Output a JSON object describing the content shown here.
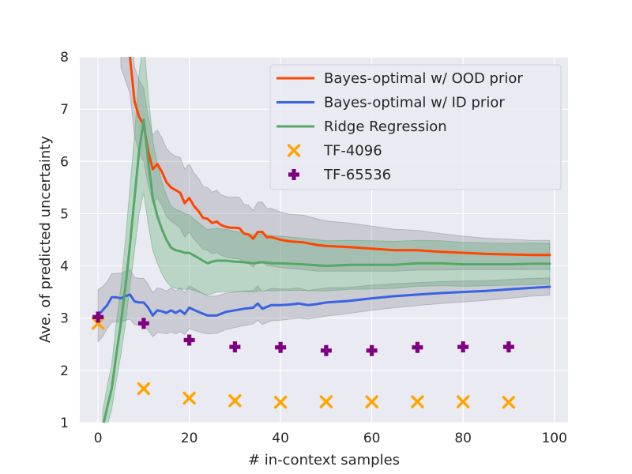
{
  "chart_data": {
    "type": "line",
    "xlabel": "# in-context samples",
    "ylabel": "Ave. of predicted uncertainty",
    "xlim": [
      -4,
      103
    ],
    "ylim": [
      1,
      8
    ],
    "xticks": [
      0,
      20,
      40,
      60,
      80,
      100
    ],
    "yticks": [
      1,
      2,
      3,
      4,
      5,
      6,
      7,
      8
    ],
    "grid": true,
    "legend_position": "top-right",
    "series": [
      {
        "name": "Bayes-optimal w/ OOD prior",
        "kind": "line",
        "color": "#ff4500",
        "band_color": "#8a8a96",
        "x": [
          5,
          7,
          8,
          9,
          10,
          11,
          12,
          13,
          14,
          15,
          16,
          17,
          18,
          19,
          20,
          21,
          22,
          23,
          24,
          25,
          26,
          27,
          28,
          29,
          30,
          31,
          32,
          33,
          34,
          35,
          36,
          37,
          38,
          40,
          42,
          45,
          48,
          50,
          55,
          60,
          65,
          70,
          75,
          80,
          85,
          90,
          95,
          99
        ],
        "y": [
          8.3,
          8.0,
          7.15,
          6.85,
          6.7,
          6.2,
          5.85,
          5.95,
          5.8,
          5.6,
          5.5,
          5.45,
          5.4,
          5.2,
          5.3,
          5.15,
          5.05,
          4.92,
          4.9,
          4.82,
          4.85,
          4.78,
          4.75,
          4.73,
          4.73,
          4.72,
          4.62,
          4.6,
          4.52,
          4.65,
          4.65,
          4.55,
          4.55,
          4.5,
          4.47,
          4.45,
          4.4,
          4.38,
          4.36,
          4.33,
          4.3,
          4.3,
          4.27,
          4.25,
          4.23,
          4.22,
          4.21,
          4.21
        ],
        "lower": [
          7.8,
          7.3,
          6.5,
          6.15,
          6.0,
          5.55,
          5.2,
          5.3,
          5.15,
          4.95,
          4.85,
          4.8,
          4.72,
          4.55,
          4.65,
          4.52,
          4.42,
          4.32,
          4.3,
          4.23,
          4.25,
          4.2,
          4.17,
          4.15,
          4.14,
          4.13,
          4.06,
          4.04,
          3.98,
          4.08,
          4.08,
          4.0,
          4.0,
          3.97,
          3.95,
          3.93,
          3.9,
          3.9,
          3.9,
          3.9,
          3.9,
          3.92,
          3.92,
          3.93,
          3.93,
          3.93,
          3.93,
          3.93
        ],
        "upper": [
          8.8,
          8.7,
          7.8,
          7.55,
          7.4,
          6.85,
          6.5,
          6.6,
          6.45,
          6.25,
          6.15,
          6.1,
          6.08,
          5.85,
          5.95,
          5.78,
          5.68,
          5.52,
          5.5,
          5.41,
          5.45,
          5.36,
          5.33,
          5.31,
          5.32,
          5.31,
          5.18,
          5.16,
          5.06,
          5.22,
          5.22,
          5.1,
          5.1,
          5.03,
          4.99,
          4.97,
          4.9,
          4.86,
          4.82,
          4.76,
          4.7,
          4.68,
          4.62,
          4.57,
          4.53,
          4.51,
          4.49,
          4.49
        ]
      },
      {
        "name": "Bayes-optimal w/ ID prior",
        "kind": "line",
        "color": "#3a63e0",
        "band_color": "#8a8a96",
        "x": [
          0,
          1,
          2,
          3,
          4,
          5,
          6,
          7,
          8,
          9,
          10,
          11,
          12,
          13,
          14,
          15,
          16,
          17,
          18,
          19,
          20,
          22,
          24,
          26,
          28,
          30,
          32,
          34,
          35,
          36,
          38,
          40,
          42,
          44,
          46,
          48,
          50,
          55,
          60,
          65,
          70,
          75,
          80,
          85,
          90,
          95,
          99
        ],
        "y": [
          3.05,
          3.15,
          3.25,
          3.4,
          3.4,
          3.38,
          3.42,
          3.45,
          3.32,
          3.3,
          3.3,
          3.2,
          3.05,
          3.15,
          3.13,
          3.1,
          3.15,
          3.1,
          3.15,
          3.08,
          3.2,
          3.12,
          3.05,
          3.05,
          3.12,
          3.15,
          3.18,
          3.2,
          3.28,
          3.18,
          3.25,
          3.25,
          3.26,
          3.28,
          3.25,
          3.27,
          3.3,
          3.33,
          3.38,
          3.42,
          3.45,
          3.48,
          3.5,
          3.52,
          3.55,
          3.58,
          3.6
        ],
        "lower": [
          2.55,
          2.65,
          2.8,
          2.92,
          2.93,
          2.92,
          2.96,
          2.98,
          2.88,
          2.86,
          2.86,
          2.77,
          2.64,
          2.73,
          2.72,
          2.7,
          2.74,
          2.7,
          2.74,
          2.69,
          2.8,
          2.74,
          2.7,
          2.71,
          2.78,
          2.82,
          2.86,
          2.89,
          2.96,
          2.88,
          2.95,
          2.96,
          2.98,
          3.0,
          2.98,
          3.01,
          3.04,
          3.09,
          3.15,
          3.2,
          3.24,
          3.28,
          3.31,
          3.34,
          3.38,
          3.42,
          3.44
        ],
        "upper": [
          3.55,
          3.6,
          3.7,
          3.85,
          3.86,
          3.86,
          3.9,
          3.93,
          3.78,
          3.76,
          3.76,
          3.65,
          3.48,
          3.58,
          3.56,
          3.52,
          3.58,
          3.52,
          3.58,
          3.49,
          3.62,
          3.52,
          3.42,
          3.42,
          3.48,
          3.5,
          3.52,
          3.53,
          3.62,
          3.5,
          3.57,
          3.56,
          3.56,
          3.58,
          3.53,
          3.55,
          3.58,
          3.59,
          3.63,
          3.66,
          3.68,
          3.7,
          3.71,
          3.72,
          3.74,
          3.76,
          3.77
        ]
      },
      {
        "name": "Ridge Regression",
        "kind": "line",
        "color": "#55a868",
        "band_color": "#55a868",
        "x": [
          1,
          2,
          3,
          4,
          5,
          6,
          7,
          8,
          9,
          10,
          11,
          12,
          13,
          14,
          15,
          16,
          17,
          18,
          19,
          20,
          21,
          22,
          23,
          24,
          25,
          26,
          28,
          30,
          32,
          34,
          36,
          38,
          40,
          45,
          50,
          55,
          60,
          65,
          70,
          75,
          80,
          85,
          90,
          95,
          99
        ],
        "y": [
          0.9,
          1.3,
          1.65,
          2.3,
          2.9,
          3.6,
          4.4,
          5.3,
          6.2,
          6.8,
          6.0,
          5.3,
          4.95,
          4.7,
          4.5,
          4.35,
          4.3,
          4.28,
          4.25,
          4.25,
          4.2,
          4.15,
          4.1,
          4.05,
          4.08,
          4.1,
          4.1,
          4.08,
          4.07,
          4.05,
          4.07,
          4.05,
          4.05,
          4.03,
          4.0,
          4.02,
          4.02,
          4.02,
          4.05,
          4.05,
          4.03,
          4.03,
          4.03,
          4.04,
          4.04
        ],
        "lower": [
          0.6,
          0.95,
          1.25,
          1.8,
          2.3,
          2.9,
          3.6,
          4.3,
          5.0,
          5.4,
          4.8,
          4.3,
          4.05,
          3.85,
          3.7,
          3.6,
          3.57,
          3.56,
          3.55,
          3.56,
          3.53,
          3.5,
          3.47,
          3.44,
          3.47,
          3.5,
          3.51,
          3.51,
          3.51,
          3.5,
          3.53,
          3.52,
          3.53,
          3.53,
          3.52,
          3.55,
          3.56,
          3.57,
          3.61,
          3.62,
          3.61,
          3.62,
          3.63,
          3.64,
          3.65
        ],
        "upper": [
          1.2,
          1.7,
          2.1,
          2.9,
          3.6,
          4.5,
          5.5,
          6.5,
          7.7,
          8.3,
          7.3,
          6.4,
          5.95,
          5.6,
          5.35,
          5.15,
          5.08,
          5.05,
          5.0,
          4.98,
          4.9,
          4.83,
          4.76,
          4.69,
          4.71,
          4.72,
          4.7,
          4.66,
          4.63,
          4.6,
          4.61,
          4.58,
          4.57,
          4.53,
          4.48,
          4.49,
          4.48,
          4.47,
          4.49,
          4.48,
          4.45,
          4.44,
          4.43,
          4.44,
          4.43
        ]
      },
      {
        "name": "TF-4096",
        "kind": "scatter",
        "marker": "x",
        "color": "#ffa500",
        "x": [
          0,
          10,
          20,
          30,
          40,
          50,
          60,
          70,
          80,
          90
        ],
        "y": [
          2.9,
          1.65,
          1.47,
          1.42,
          1.39,
          1.4,
          1.4,
          1.4,
          1.4,
          1.39
        ]
      },
      {
        "name": "TF-65536",
        "kind": "scatter",
        "marker": "plus",
        "color": "#800080",
        "x": [
          0,
          10,
          20,
          30,
          40,
          50,
          60,
          70,
          80,
          90
        ],
        "y": [
          3.02,
          2.9,
          2.58,
          2.45,
          2.44,
          2.38,
          2.38,
          2.44,
          2.45,
          2.45
        ]
      }
    ]
  }
}
